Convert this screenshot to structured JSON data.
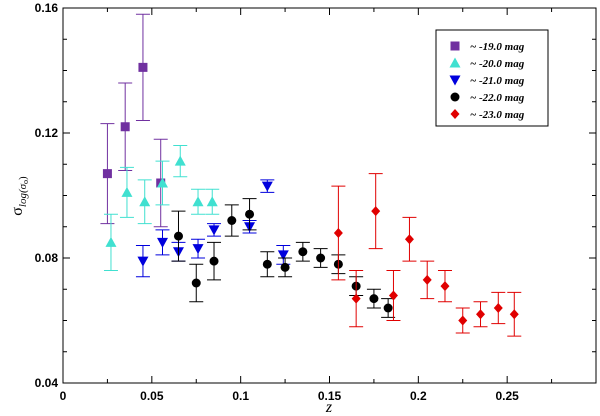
{
  "chart_data": {
    "type": "scatter",
    "title": "",
    "xlabel": "z",
    "ylabel_main": "σ",
    "ylabel_sub": "log(σ",
    "ylabel_sub2": "o",
    "ylabel_close": ")",
    "xlim": [
      0,
      0.3
    ],
    "ylim": [
      0.04,
      0.16
    ],
    "x_ticks": [
      0,
      0.05,
      0.1,
      0.15,
      0.2,
      0.25
    ],
    "x_tick_labels": [
      "0",
      "0.05",
      "0.1",
      "0.15",
      "0.2",
      "0.25"
    ],
    "y_ticks": [
      0.04,
      0.08,
      0.12,
      0.16
    ],
    "y_tick_labels": [
      "0.04",
      "0.08",
      "0.12",
      "0.16"
    ],
    "grid": false,
    "legend_position": "top-right",
    "series": [
      {
        "name": "~ -19.0 mag",
        "marker": "square",
        "color": "#7030a0",
        "points": [
          {
            "x": 0.025,
            "y": 0.107,
            "err": 0.016
          },
          {
            "x": 0.035,
            "y": 0.122,
            "err": 0.014
          },
          {
            "x": 0.045,
            "y": 0.141,
            "err": 0.017
          },
          {
            "x": 0.055,
            "y": 0.104,
            "err": 0.014
          }
        ]
      },
      {
        "name": "~ -20.0 mag",
        "marker": "triangle-up",
        "color": "#40e0d0",
        "points": [
          {
            "x": 0.027,
            "y": 0.085,
            "err": 0.009
          },
          {
            "x": 0.036,
            "y": 0.101,
            "err": 0.008
          },
          {
            "x": 0.046,
            "y": 0.098,
            "err": 0.007
          },
          {
            "x": 0.056,
            "y": 0.104,
            "err": 0.007
          },
          {
            "x": 0.066,
            "y": 0.111,
            "err": 0.005
          },
          {
            "x": 0.076,
            "y": 0.098,
            "err": 0.004
          },
          {
            "x": 0.084,
            "y": 0.098,
            "err": 0.004
          }
        ]
      },
      {
        "name": "~ -21.0 mag",
        "marker": "triangle-down",
        "color": "#0000dd",
        "points": [
          {
            "x": 0.045,
            "y": 0.079,
            "err": 0.005
          },
          {
            "x": 0.056,
            "y": 0.085,
            "err": 0.004
          },
          {
            "x": 0.065,
            "y": 0.082,
            "err": 0.003
          },
          {
            "x": 0.076,
            "y": 0.083,
            "err": 0.003
          },
          {
            "x": 0.085,
            "y": 0.089,
            "err": 0.002
          },
          {
            "x": 0.105,
            "y": 0.09,
            "err": 0.002
          },
          {
            "x": 0.115,
            "y": 0.103,
            "err": 0.002
          },
          {
            "x": 0.124,
            "y": 0.081,
            "err": 0.003
          }
        ]
      },
      {
        "name": "~ -22.0 mag",
        "marker": "circle",
        "color": "#000000",
        "points": [
          {
            "x": 0.065,
            "y": 0.087,
            "err": 0.008
          },
          {
            "x": 0.075,
            "y": 0.072,
            "err": 0.006
          },
          {
            "x": 0.085,
            "y": 0.079,
            "err": 0.006
          },
          {
            "x": 0.095,
            "y": 0.092,
            "err": 0.005
          },
          {
            "x": 0.105,
            "y": 0.094,
            "err": 0.005
          },
          {
            "x": 0.115,
            "y": 0.078,
            "err": 0.004
          },
          {
            "x": 0.125,
            "y": 0.077,
            "err": 0.003
          },
          {
            "x": 0.135,
            "y": 0.082,
            "err": 0.003
          },
          {
            "x": 0.145,
            "y": 0.08,
            "err": 0.003
          },
          {
            "x": 0.155,
            "y": 0.078,
            "err": 0.003
          },
          {
            "x": 0.165,
            "y": 0.071,
            "err": 0.003
          },
          {
            "x": 0.175,
            "y": 0.067,
            "err": 0.003
          },
          {
            "x": 0.183,
            "y": 0.064,
            "err": 0.003
          }
        ]
      },
      {
        "name": "~ -23.0 mag",
        "marker": "diamond",
        "color": "#e00000",
        "points": [
          {
            "x": 0.155,
            "y": 0.088,
            "err": 0.015
          },
          {
            "x": 0.165,
            "y": 0.067,
            "err": 0.009
          },
          {
            "x": 0.176,
            "y": 0.095,
            "err": 0.012
          },
          {
            "x": 0.186,
            "y": 0.068,
            "err": 0.008
          },
          {
            "x": 0.195,
            "y": 0.086,
            "err": 0.007
          },
          {
            "x": 0.205,
            "y": 0.073,
            "err": 0.006
          },
          {
            "x": 0.215,
            "y": 0.071,
            "err": 0.005
          },
          {
            "x": 0.225,
            "y": 0.06,
            "err": 0.004
          },
          {
            "x": 0.235,
            "y": 0.062,
            "err": 0.004
          },
          {
            "x": 0.245,
            "y": 0.064,
            "err": 0.005
          },
          {
            "x": 0.254,
            "y": 0.062,
            "err": 0.007
          }
        ]
      }
    ]
  }
}
